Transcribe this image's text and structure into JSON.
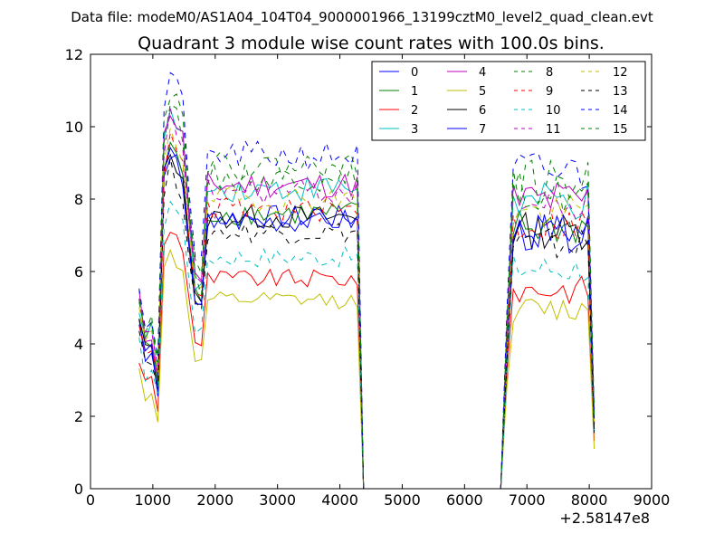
{
  "figure": {
    "suptitle": "Data file: modeM0/AS1A04_104T04_9000001966_13199cztM0_level2_quad_clean.evt",
    "x_offset_label": "+2.58147e8"
  },
  "chart_data": {
    "type": "line",
    "title": "Quadrant 3 module wise count rates with 100.0s bins.",
    "xlabel": "",
    "ylabel": "",
    "xlim": [
      0,
      9000
    ],
    "ylim": [
      0,
      12
    ],
    "xticks": [
      0,
      1000,
      2000,
      3000,
      4000,
      5000,
      6000,
      7000,
      8000,
      9000
    ],
    "yticks": [
      0,
      2,
      4,
      6,
      8,
      10,
      12
    ],
    "x": [
      780,
      880,
      980,
      1080,
      1180,
      1280,
      1380,
      1480,
      1580,
      1680,
      1780,
      1880,
      1980,
      2080,
      2180,
      2280,
      2380,
      2480,
      2580,
      2680,
      2780,
      2880,
      2980,
      3080,
      3180,
      3280,
      3380,
      3480,
      3580,
      3680,
      3780,
      3880,
      3980,
      4080,
      4180,
      4280,
      4380,
      6580,
      6680,
      6780,
      6880,
      6980,
      7080,
      7180,
      7280,
      7380,
      7480,
      7580,
      7680,
      7780,
      7880,
      7980,
      8080
    ],
    "legend": {
      "position": "top-right",
      "columns": 4
    },
    "series": [
      {
        "name": "0",
        "color": "#0000ff",
        "dash": "solid",
        "level": 7.5
      },
      {
        "name": "1",
        "color": "#008000",
        "dash": "solid",
        "level": 7.6
      },
      {
        "name": "2",
        "color": "#ff0000",
        "dash": "solid",
        "level": 5.8
      },
      {
        "name": "3",
        "color": "#00bfbf",
        "dash": "solid",
        "level": 8.3
      },
      {
        "name": "4",
        "color": "#bf00bf",
        "dash": "solid",
        "level": 8.4
      },
      {
        "name": "5",
        "color": "#bfbf00",
        "dash": "solid",
        "level": 5.2
      },
      {
        "name": "6",
        "color": "#000000",
        "dash": "solid",
        "level": 7.5
      },
      {
        "name": "7",
        "color": "#0000ff",
        "dash": "solid",
        "level": 7.4
      },
      {
        "name": "8",
        "color": "#008000",
        "dash": "dashed",
        "level": 8.6
      },
      {
        "name": "9",
        "color": "#ff0000",
        "dash": "dashed",
        "level": 7.7
      },
      {
        "name": "10",
        "color": "#00bfbf",
        "dash": "dashed",
        "level": 6.4
      },
      {
        "name": "11",
        "color": "#bf00bf",
        "dash": "dashed",
        "level": 8.2
      },
      {
        "name": "12",
        "color": "#bfbf00",
        "dash": "dashed",
        "level": 8.0
      },
      {
        "name": "13",
        "color": "#000000",
        "dash": "dashed",
        "level": 7.1
      },
      {
        "name": "14",
        "color": "#0000ff",
        "dash": "dashed",
        "level": 9.2
      },
      {
        "name": "15",
        "color": "#008000",
        "dash": "dashed",
        "level": 8.9
      }
    ]
  }
}
